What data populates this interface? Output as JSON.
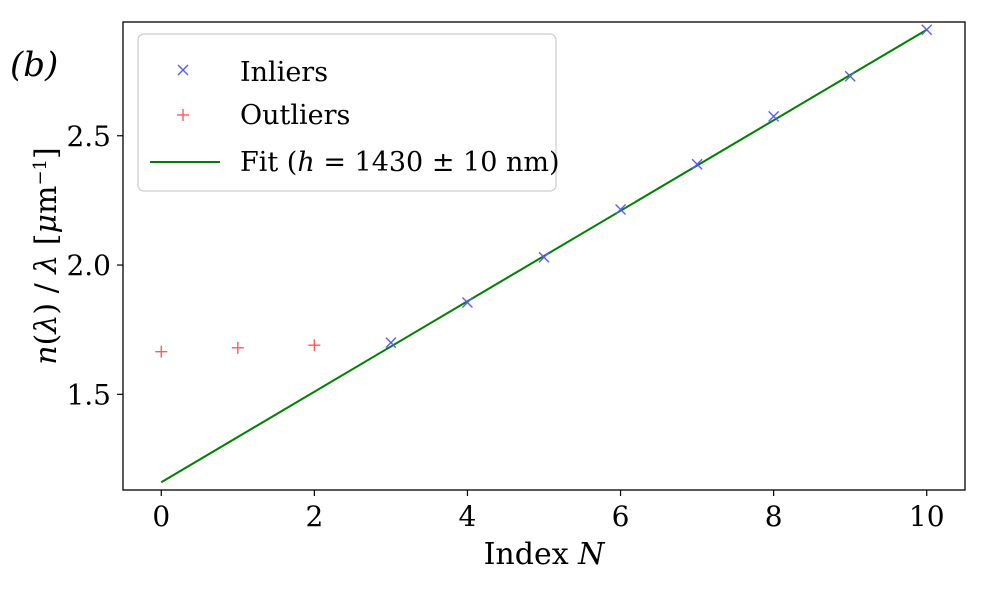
{
  "chart_data": {
    "type": "scatter",
    "panel_label": "(b)",
    "xlabel": "Index N",
    "ylabel": "n(λ) / λ [μm⁻¹]",
    "xlim": [
      -0.5,
      10.5
    ],
    "ylim": [
      1.13,
      2.94
    ],
    "xticks": [
      0,
      2,
      4,
      6,
      8,
      10
    ],
    "yticks": [
      1.5,
      2.0,
      2.5
    ],
    "ytick_labels": [
      "1.5",
      "2.0",
      "2.5"
    ],
    "grid": false,
    "legend_position": "top-left",
    "series": [
      {
        "name": "Inliers",
        "marker": "x",
        "color": "#5b5bff",
        "x": [
          3,
          4,
          5,
          6,
          7,
          8,
          9,
          10
        ],
        "y": [
          1.7,
          1.855,
          2.03,
          2.215,
          2.39,
          2.575,
          2.73,
          2.91
        ]
      },
      {
        "name": "Outliers",
        "marker": "+",
        "color": "#ff5b5b",
        "x": [
          0,
          1,
          2
        ],
        "y": [
          1.665,
          1.68,
          1.69
        ]
      },
      {
        "name": "Fit (h = 1430 ± 10 nm)",
        "marker": "line",
        "color": "#008000",
        "x": [
          0,
          10
        ],
        "y": [
          1.16,
          2.91
        ]
      }
    ]
  }
}
